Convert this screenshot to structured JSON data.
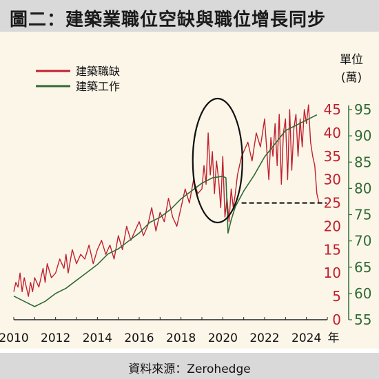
{
  "title": "圖二：建築業職位空缺與職位增長同步",
  "source": "資料來源：Zerohedge",
  "unit_label_line1": "單位",
  "unit_label_line2": "(萬)",
  "colors": {
    "vacancies": "#c0202e",
    "employment": "#2f6b35",
    "right_axis_green": "#2f6b35",
    "right_axis_red": "#c0202e",
    "background": "#fcf6e9",
    "title_bar": "#d9d9d9"
  },
  "chart_data": {
    "type": "line",
    "title": "圖二：建築業職位空缺與職位增長同步",
    "x_tick_labels": [
      "2010",
      "2012",
      "2014",
      "2016",
      "2018",
      "2020",
      "2022",
      "2024"
    ],
    "x_unit": "年",
    "xlim": [
      2010.0,
      2025.0
    ],
    "legend": {
      "placement": "top-left",
      "entries": [
        "建築職缺",
        "建築工作"
      ]
    },
    "y_axes": {
      "vacancies": {
        "ylim": [
          0,
          45
        ],
        "ticks": [
          "0",
          "5",
          "10",
          "15",
          "20",
          "25",
          "30",
          "35",
          "40",
          "45"
        ]
      },
      "employment": {
        "ylim": [
          55,
          95
        ],
        "ticks": [
          "55",
          "60",
          "65",
          "70",
          "75",
          "80",
          "85",
          "90",
          "95"
        ]
      }
    },
    "series": [
      {
        "name": "建築職缺",
        "axis": "vacancies",
        "x": [
          2010.0,
          2010.1,
          2010.2,
          2010.3,
          2010.4,
          2010.5,
          2010.6,
          2010.7,
          2010.8,
          2010.9,
          2011.0,
          2011.2,
          2011.4,
          2011.5,
          2011.6,
          2011.8,
          2012.0,
          2012.2,
          2012.4,
          2012.5,
          2012.6,
          2012.8,
          2013.0,
          2013.2,
          2013.4,
          2013.6,
          2013.8,
          2014.0,
          2014.2,
          2014.4,
          2014.6,
          2014.8,
          2015.0,
          2015.2,
          2015.4,
          2015.6,
          2015.8,
          2016.0,
          2016.2,
          2016.4,
          2016.6,
          2016.8,
          2017.0,
          2017.2,
          2017.4,
          2017.6,
          2017.8,
          2018.0,
          2018.2,
          2018.4,
          2018.6,
          2018.8,
          2019.0,
          2019.1,
          2019.2,
          2019.3,
          2019.4,
          2019.5,
          2019.6,
          2019.7,
          2019.8,
          2019.9,
          2020.0,
          2020.1,
          2020.2,
          2020.3,
          2020.4,
          2020.5,
          2020.6,
          2020.7,
          2020.8,
          2020.9,
          2021.0,
          2021.2,
          2021.4,
          2021.6,
          2021.8,
          2022.0,
          2022.2,
          2022.3,
          2022.4,
          2022.5,
          2022.6,
          2022.7,
          2022.8,
          2022.9,
          2023.0,
          2023.1,
          2023.2,
          2023.3,
          2023.4,
          2023.5,
          2023.6,
          2023.7,
          2023.8,
          2023.9,
          2024.0,
          2024.1,
          2024.2,
          2024.3,
          2024.4,
          2024.5,
          2024.6
        ],
        "values": [
          6,
          8,
          7,
          10,
          6,
          9,
          7,
          5,
          8,
          6,
          9,
          7,
          11,
          8,
          12,
          9,
          10,
          13,
          11,
          14,
          10,
          15,
          12,
          14,
          13,
          16,
          12,
          15,
          17,
          14,
          16,
          13,
          18,
          15,
          20,
          17,
          19,
          21,
          18,
          20,
          24,
          19,
          23,
          21,
          26,
          22,
          20,
          24,
          28,
          25,
          30,
          27,
          28,
          33,
          29,
          40,
          31,
          36,
          27,
          34,
          30,
          24,
          35,
          22,
          26,
          21,
          28,
          24,
          27,
          31,
          33,
          35,
          36,
          38,
          34,
          40,
          37,
          43,
          30,
          39,
          35,
          42,
          33,
          44,
          29,
          40,
          43,
          30,
          45,
          32,
          41,
          44,
          35,
          43,
          37,
          45,
          42,
          46,
          38,
          35,
          33,
          27,
          25
        ]
      },
      {
        "name": "建築工作",
        "axis": "employment",
        "x": [
          2010.0,
          2010.5,
          2011.0,
          2011.5,
          2012.0,
          2012.5,
          2013.0,
          2013.5,
          2014.0,
          2014.5,
          2015.0,
          2015.5,
          2016.0,
          2016.5,
          2017.0,
          2017.5,
          2018.0,
          2018.5,
          2019.0,
          2019.5,
          2020.0,
          2020.15,
          2020.25,
          2020.4,
          2020.6,
          2020.8,
          2021.0,
          2021.5,
          2022.0,
          2022.5,
          2023.0,
          2023.5,
          2024.0,
          2024.5
        ],
        "values": [
          59.5,
          58.5,
          57.5,
          58.5,
          60.0,
          61.0,
          62.5,
          64.0,
          65.5,
          67.5,
          68.5,
          70.0,
          71.5,
          73.5,
          74.5,
          76.0,
          78.0,
          79.5,
          81.0,
          82.0,
          82.3,
          82.0,
          71.5,
          74.0,
          76.5,
          78.0,
          79.5,
          82.5,
          86.0,
          88.5,
          91.0,
          92.0,
          93.0,
          94.0
        ]
      }
    ],
    "annotations": [
      {
        "type": "ellipse",
        "around": "2019-2020"
      },
      {
        "type": "dashed-hline",
        "axis": "vacancies",
        "value": 25,
        "from_x": 2020.9
      }
    ]
  }
}
